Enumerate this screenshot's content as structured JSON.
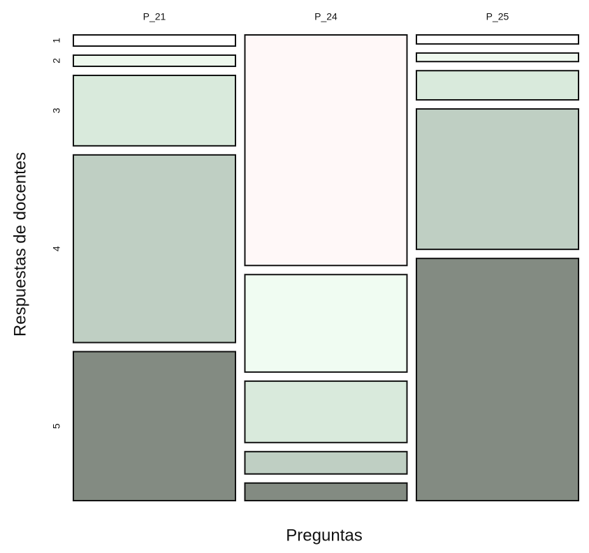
{
  "chart_data": {
    "type": "mosaic",
    "x_label": "Preguntas",
    "y_label": "Respuestas de  docentes",
    "categories": [
      "P_21",
      "P_24",
      "P_25"
    ],
    "series": [
      {
        "name": "1",
        "colors": [
          "#ffffff",
          "#fff8f8",
          "#ffffff"
        ],
        "values": [
          2.6,
          53.7,
          2.1
        ]
      },
      {
        "name": "2",
        "colors": [
          "#eef8ee",
          "#f0fcf2",
          "#eef8ee"
        ],
        "values": [
          2.6,
          22.7,
          2.0
        ]
      },
      {
        "name": "3",
        "colors": [
          "#d9eadc",
          "#d9eadc",
          "#d9eadc"
        ],
        "values": [
          16.4,
          14.3,
          6.8
        ]
      },
      {
        "name": "4",
        "colors": [
          "#bfcfc3",
          "#bfcfc3",
          "#bfcfc3"
        ],
        "values": [
          43.7,
          5.2,
          32.7
        ]
      },
      {
        "name": "5",
        "colors": [
          "#838b82",
          "#838b82",
          "#838b82"
        ],
        "values": [
          34.7,
          4.1,
          56.4
        ]
      }
    ]
  }
}
